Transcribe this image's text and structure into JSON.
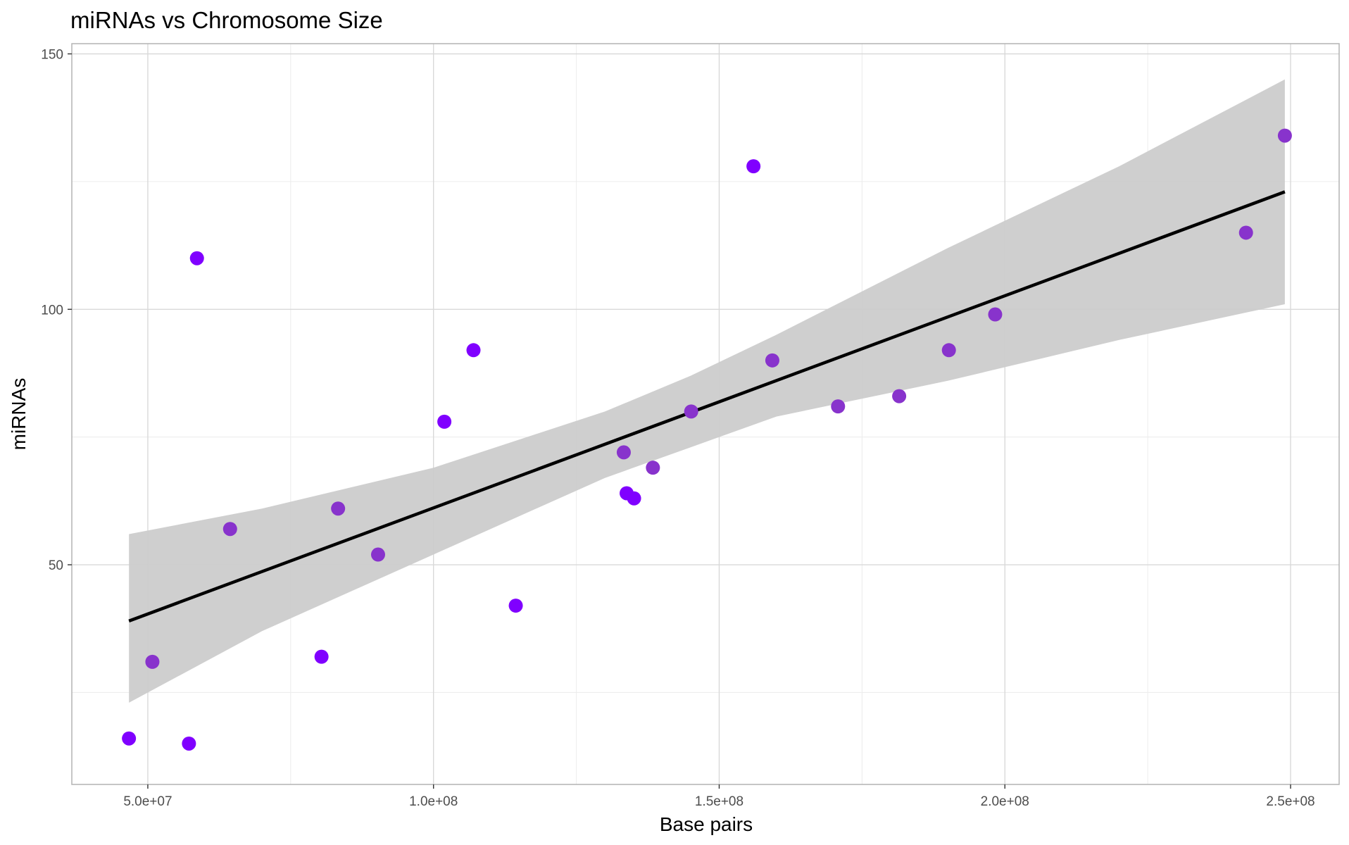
{
  "chart_data": {
    "type": "scatter",
    "title": "miRNAs vs Chromosome Size",
    "xlabel": "Base pairs",
    "ylabel": "miRNAs",
    "xlim": [
      36700000,
      258500000
    ],
    "ylim": [
      7,
      152
    ],
    "x_ticks": [
      50000000,
      100000000,
      150000000,
      200000000,
      250000000
    ],
    "x_tick_labels": [
      "5.0e+07",
      "1.0e+08",
      "1.5e+08",
      "2.0e+08",
      "2.5e+08"
    ],
    "y_ticks": [
      50,
      100,
      150
    ],
    "y_tick_labels": [
      "50",
      "100",
      "150"
    ],
    "x_minor_ticks": [
      75000000,
      125000000,
      175000000,
      225000000
    ],
    "y_minor_ticks": [
      25,
      75,
      125
    ],
    "grid": true,
    "legend": "none",
    "points": [
      {
        "x": 46700000,
        "y": 16,
        "color": "#8000ff"
      },
      {
        "x": 50800000,
        "y": 31,
        "color": "#8833cc"
      },
      {
        "x": 57200000,
        "y": 15,
        "color": "#8000ff"
      },
      {
        "x": 58600000,
        "y": 110,
        "color": "#8000ff"
      },
      {
        "x": 64400000,
        "y": 57,
        "color": "#8833cc"
      },
      {
        "x": 80400000,
        "y": 32,
        "color": "#8000ff"
      },
      {
        "x": 83300000,
        "y": 61,
        "color": "#8833cc"
      },
      {
        "x": 90300000,
        "y": 52,
        "color": "#8833cc"
      },
      {
        "x": 101900000,
        "y": 78,
        "color": "#8000ff"
      },
      {
        "x": 107000000,
        "y": 92,
        "color": "#8000ff"
      },
      {
        "x": 114400000,
        "y": 42,
        "color": "#8000ff"
      },
      {
        "x": 133300000,
        "y": 72,
        "color": "#8833cc"
      },
      {
        "x": 133800000,
        "y": 64,
        "color": "#8000ff"
      },
      {
        "x": 135100000,
        "y": 63,
        "color": "#8000ff"
      },
      {
        "x": 138400000,
        "y": 69,
        "color": "#8833cc"
      },
      {
        "x": 145100000,
        "y": 80,
        "color": "#8833cc"
      },
      {
        "x": 156000000,
        "y": 128,
        "color": "#8000ff"
      },
      {
        "x": 159300000,
        "y": 90,
        "color": "#8833cc"
      },
      {
        "x": 170800000,
        "y": 81,
        "color": "#8833cc"
      },
      {
        "x": 181500000,
        "y": 83,
        "color": "#8833cc"
      },
      {
        "x": 190200000,
        "y": 92,
        "color": "#8833cc"
      },
      {
        "x": 198300000,
        "y": 99,
        "color": "#8833cc"
      },
      {
        "x": 242200000,
        "y": 115,
        "color": "#8833cc"
      },
      {
        "x": 249000000,
        "y": 134,
        "color": "#8833cc"
      }
    ],
    "fit_line": {
      "x": [
        46700000,
        249000000
      ],
      "y": [
        39,
        123
      ],
      "color": "#000000"
    },
    "confidence_band": {
      "x": [
        46700000,
        70000000,
        100000000,
        130000000,
        145000000,
        160000000,
        190000000,
        220000000,
        249000000
      ],
      "lower": [
        23,
        37,
        52,
        67,
        73,
        79,
        86,
        94,
        101
      ],
      "upper": [
        56,
        61,
        69,
        80,
        87,
        95,
        112,
        128,
        145
      ],
      "color": "#cccccc"
    },
    "colors": {
      "background": "#ffffff",
      "panel_border": "#b3b3b3",
      "grid_major": "#d9d9d9",
      "grid_minor": "#ececec",
      "tick_label": "#4d4d4d"
    }
  }
}
